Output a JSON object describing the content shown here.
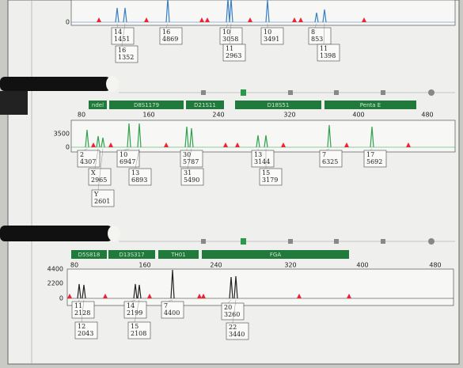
{
  "panels": [
    {
      "yticks": [
        "0"
      ],
      "xticks": [],
      "markers": [],
      "alleles": [
        {
          "allele": "14",
          "height": "1451"
        },
        {
          "allele": "16",
          "height": "1352"
        },
        {
          "allele": "16",
          "height": "4869"
        },
        {
          "allele": "10",
          "height": "3058"
        },
        {
          "allele": "11",
          "height": "2963"
        },
        {
          "allele": "10",
          "height": "3491"
        },
        {
          "allele": "8",
          "height": "853"
        },
        {
          "allele": "11",
          "height": "1398"
        }
      ]
    },
    {
      "yticks": [
        "3500",
        "0"
      ],
      "xticks": [
        "80",
        "160",
        "240",
        "320",
        "400",
        "480"
      ],
      "markers": [
        "ndel",
        "D8S1179",
        "D21S11",
        "D18S51",
        "Penta E"
      ],
      "alleles": [
        {
          "allele": "2",
          "height": "4307"
        },
        {
          "allele": "X",
          "height": "2965"
        },
        {
          "allele": "Y",
          "height": "2601"
        },
        {
          "allele": "10",
          "height": "6947"
        },
        {
          "allele": "13",
          "height": "6893"
        },
        {
          "allele": "30",
          "height": "5787"
        },
        {
          "allele": "31",
          "height": "5490"
        },
        {
          "allele": "13",
          "height": "3144"
        },
        {
          "allele": "15",
          "height": "3179"
        },
        {
          "allele": "7",
          "height": "6325"
        },
        {
          "allele": "17",
          "height": "5692"
        }
      ]
    },
    {
      "yticks": [
        "4400",
        "2200",
        "0"
      ],
      "xticks": [
        "80",
        "160",
        "240",
        "320",
        "400",
        "480"
      ],
      "markers": [
        "D5S818",
        "D13S317",
        "TH01",
        "FGA"
      ],
      "alleles": [
        {
          "allele": "11",
          "height": "2128"
        },
        {
          "allele": "12",
          "height": "2043"
        },
        {
          "allele": "14",
          "height": "2199"
        },
        {
          "allele": "15",
          "height": "2108"
        },
        {
          "allele": "7",
          "height": "4400"
        },
        {
          "allele": "20",
          "height": "3260"
        },
        {
          "allele": "22",
          "height": "3440"
        }
      ]
    }
  ]
}
